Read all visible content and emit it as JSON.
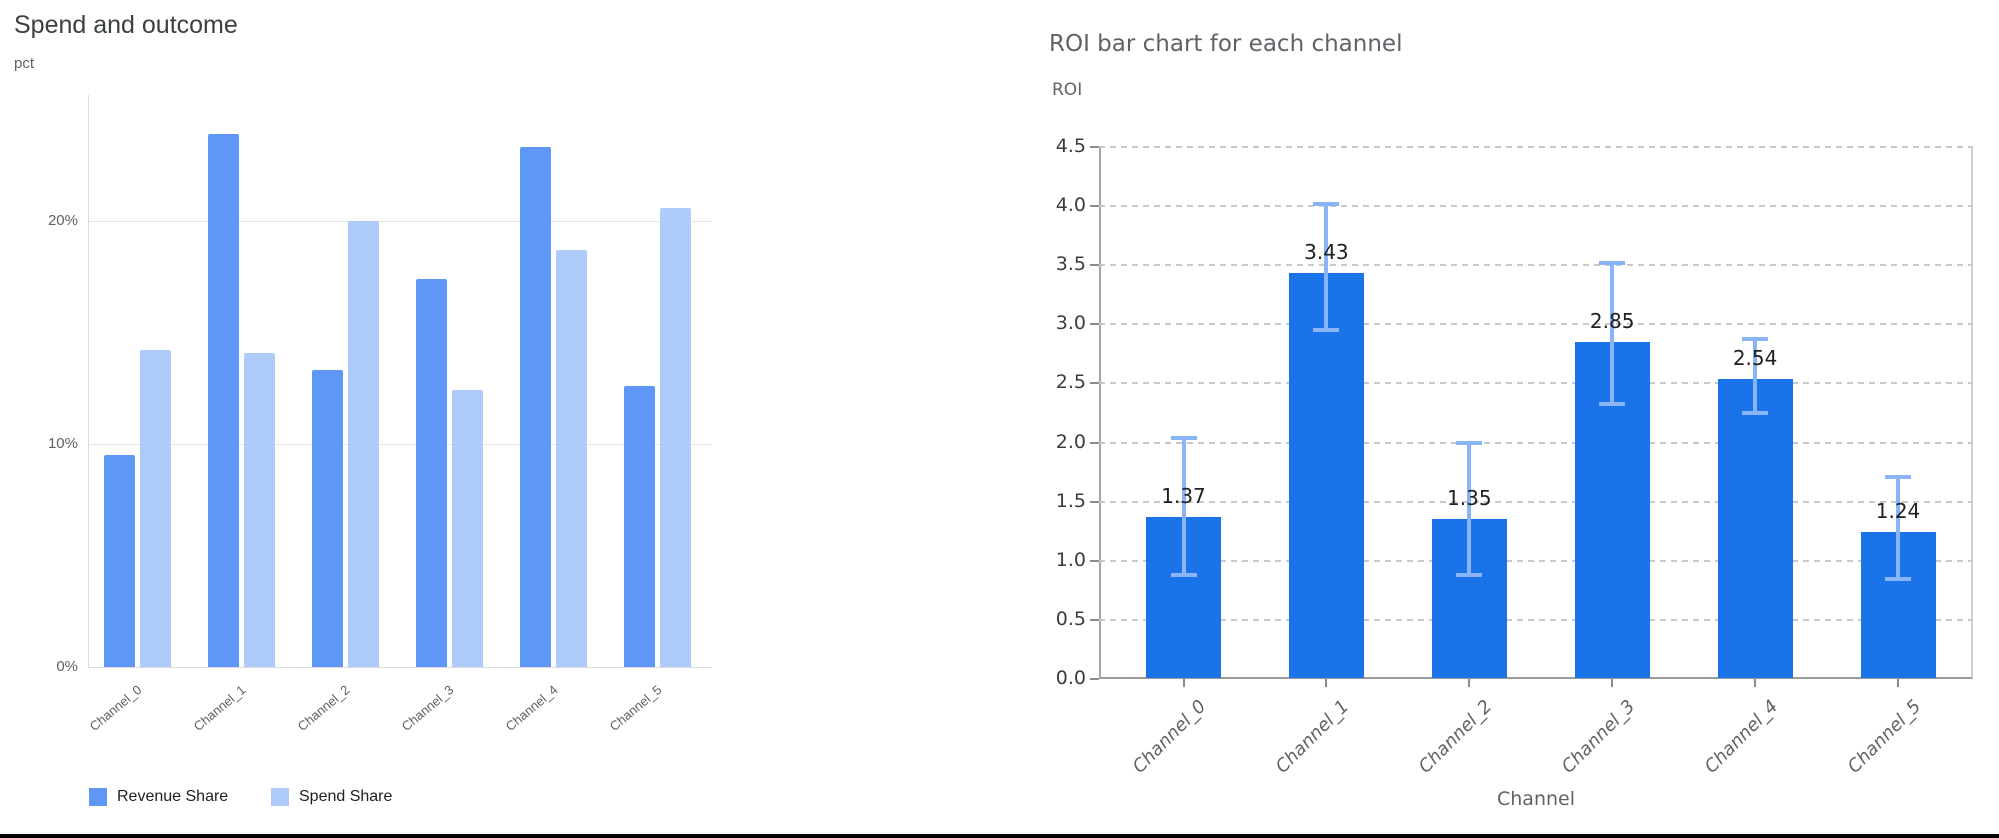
{
  "chart_data": [
    {
      "id": "spend-and-outcome",
      "type": "bar",
      "title": "Spend and outcome",
      "xlabel": "",
      "ylabel": "pct",
      "categories": [
        "Channel_0",
        "Channel_1",
        "Channel_2",
        "Channel_3",
        "Channel_4",
        "Channel_5"
      ],
      "series": [
        {
          "name": "Revenue Share",
          "color": "#5e97f6",
          "values": [
            9.5,
            23.9,
            13.3,
            17.4,
            23.3,
            12.6
          ]
        },
        {
          "name": "Spend Share",
          "color": "#aecbfa",
          "values": [
            14.2,
            14.1,
            20.0,
            12.4,
            18.7,
            20.6
          ]
        }
      ],
      "y_ticks": [
        {
          "value": 0,
          "label": "0%"
        },
        {
          "value": 10,
          "label": "10%"
        },
        {
          "value": 20,
          "label": "20%"
        }
      ],
      "ylim": [
        0,
        25.7
      ],
      "unit": "%",
      "grid": "solid-horizontal",
      "legend_position": "bottom-left"
    },
    {
      "id": "roi-per-channel",
      "type": "bar",
      "title": "ROI bar chart for each channel",
      "xlabel": "Channel",
      "ylabel": "ROI",
      "categories": [
        "Channel_0",
        "Channel_1",
        "Channel_2",
        "Channel_3",
        "Channel_4",
        "Channel_5"
      ],
      "values": [
        1.37,
        3.43,
        1.35,
        2.85,
        2.54,
        1.24
      ],
      "bar_labels": [
        "1.37",
        "3.43",
        "1.35",
        "2.85",
        "2.54",
        "1.24"
      ],
      "error_bars": {
        "low": [
          0.88,
          2.95,
          0.88,
          2.33,
          2.25,
          0.85
        ],
        "high": [
          2.04,
          4.02,
          2.0,
          3.52,
          2.88,
          1.71
        ]
      },
      "y_ticks": [
        {
          "value": 0.0,
          "label": "0.0"
        },
        {
          "value": 0.5,
          "label": "0.5"
        },
        {
          "value": 1.0,
          "label": "1.0"
        },
        {
          "value": 1.5,
          "label": "1.5"
        },
        {
          "value": 2.0,
          "label": "2.0"
        },
        {
          "value": 2.5,
          "label": "2.5"
        },
        {
          "value": 3.0,
          "label": "3.0"
        },
        {
          "value": 3.5,
          "label": "3.5"
        },
        {
          "value": 4.0,
          "label": "4.0"
        },
        {
          "value": 4.5,
          "label": "4.5"
        }
      ],
      "ylim": [
        0,
        4.5
      ],
      "bar_color": "#1a73e8",
      "error_bar_color": "#8ab4f8",
      "grid": "dashed-horizontal",
      "legend_position": "none"
    }
  ]
}
